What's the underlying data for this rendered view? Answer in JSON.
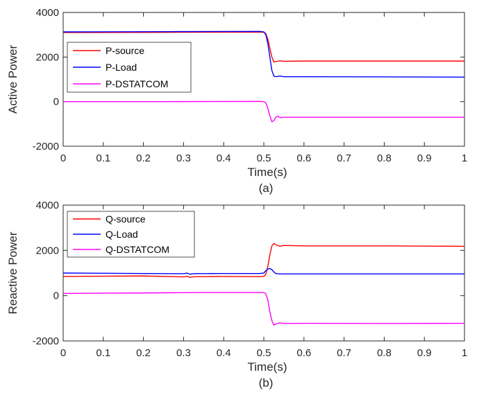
{
  "chart_data": [
    {
      "id": "a",
      "type": "line",
      "caption": "(a)",
      "xlabel": "Time(s)",
      "ylabel": "Active Power",
      "xlim": [
        0,
        1
      ],
      "ylim": [
        -2000,
        4000
      ],
      "xticks": [
        0,
        0.1,
        0.2,
        0.3,
        0.4,
        0.5,
        0.6,
        0.7,
        0.8,
        0.9,
        1
      ],
      "xtick_labels": [
        "0",
        "0.1",
        "0.2",
        "0.3",
        "0.4",
        "0.5",
        "0.6",
        "0.7",
        "0.8",
        "0.9",
        "1"
      ],
      "yticks": [
        -2000,
        0,
        2000,
        4000
      ],
      "ytick_labels": [
        "-2000",
        "0",
        "2000",
        "4000"
      ],
      "legend_position": "upper-left",
      "series": [
        {
          "name": "P-source",
          "color": "#ff0000",
          "x": [
            0,
            0.25,
            0.49,
            0.5,
            0.505,
            0.51,
            0.515,
            0.52,
            0.525,
            0.53,
            0.54,
            0.55,
            0.6,
            0.8,
            1.0
          ],
          "y": [
            3100,
            3110,
            3120,
            3110,
            3050,
            2800,
            2400,
            2000,
            1780,
            1800,
            1830,
            1810,
            1820,
            1820,
            1820
          ]
        },
        {
          "name": "P-Load",
          "color": "#0000ff",
          "x": [
            0,
            0.25,
            0.49,
            0.5,
            0.505,
            0.51,
            0.515,
            0.52,
            0.525,
            0.53,
            0.54,
            0.55,
            0.6,
            0.8,
            1.0
          ],
          "y": [
            3130,
            3140,
            3150,
            3130,
            3000,
            2600,
            2000,
            1400,
            1150,
            1120,
            1150,
            1120,
            1120,
            1110,
            1100
          ]
        },
        {
          "name": "P-DSTATCOM",
          "color": "#ff00ff",
          "x": [
            0,
            0.25,
            0.49,
            0.5,
            0.505,
            0.51,
            0.515,
            0.52,
            0.525,
            0.53,
            0.535,
            0.54,
            0.55,
            0.6,
            0.8,
            1.0
          ],
          "y": [
            0,
            0,
            10,
            0,
            -60,
            -300,
            -650,
            -900,
            -850,
            -700,
            -650,
            -720,
            -700,
            -700,
            -700,
            -700
          ]
        }
      ]
    },
    {
      "id": "b",
      "type": "line",
      "caption": "(b)",
      "xlabel": "Time(s)",
      "ylabel": "Reactive Power",
      "xlim": [
        0,
        1
      ],
      "ylim": [
        -2000,
        4000
      ],
      "xticks": [
        0,
        0.1,
        0.2,
        0.3,
        0.4,
        0.5,
        0.6,
        0.7,
        0.8,
        0.9,
        1
      ],
      "xtick_labels": [
        "0",
        "0.1",
        "0.2",
        "0.3",
        "0.4",
        "0.5",
        "0.6",
        "0.7",
        "0.8",
        "0.9",
        "1"
      ],
      "yticks": [
        -2000,
        0,
        2000,
        4000
      ],
      "ytick_labels": [
        "-2000",
        "0",
        "2000",
        "4000"
      ],
      "legend_position": "upper-left",
      "series": [
        {
          "name": "Q-source",
          "color": "#ff0000",
          "x": [
            0,
            0.1,
            0.2,
            0.3,
            0.4,
            0.49,
            0.5,
            0.505,
            0.51,
            0.515,
            0.52,
            0.525,
            0.53,
            0.54,
            0.55,
            0.6,
            0.8,
            1.0
          ],
          "y": [
            850,
            860,
            870,
            830,
            850,
            840,
            850,
            950,
            1300,
            1800,
            2200,
            2300,
            2250,
            2180,
            2220,
            2200,
            2200,
            2180
          ],
          "jitter": [
            0.23,
            0.32
          ]
        },
        {
          "name": "Q-Load",
          "color": "#0000ff",
          "x": [
            0,
            0.1,
            0.2,
            0.3,
            0.4,
            0.49,
            0.5,
            0.505,
            0.51,
            0.515,
            0.52,
            0.525,
            0.53,
            0.54,
            0.6,
            0.8,
            1.0
          ],
          "y": [
            1000,
            990,
            980,
            970,
            980,
            980,
            1000,
            1100,
            1180,
            1200,
            1150,
            1050,
            980,
            960,
            960,
            960,
            960
          ],
          "jitter": [
            0.23,
            0.32
          ]
        },
        {
          "name": "Q-DSTATCOM",
          "color": "#ff00ff",
          "x": [
            0,
            0.2,
            0.35,
            0.49,
            0.5,
            0.505,
            0.51,
            0.515,
            0.52,
            0.525,
            0.53,
            0.54,
            0.55,
            0.6,
            0.8,
            1.0
          ],
          "y": [
            100,
            120,
            140,
            140,
            140,
            80,
            -200,
            -700,
            -1100,
            -1300,
            -1250,
            -1200,
            -1230,
            -1220,
            -1230,
            -1220
          ]
        }
      ]
    }
  ]
}
